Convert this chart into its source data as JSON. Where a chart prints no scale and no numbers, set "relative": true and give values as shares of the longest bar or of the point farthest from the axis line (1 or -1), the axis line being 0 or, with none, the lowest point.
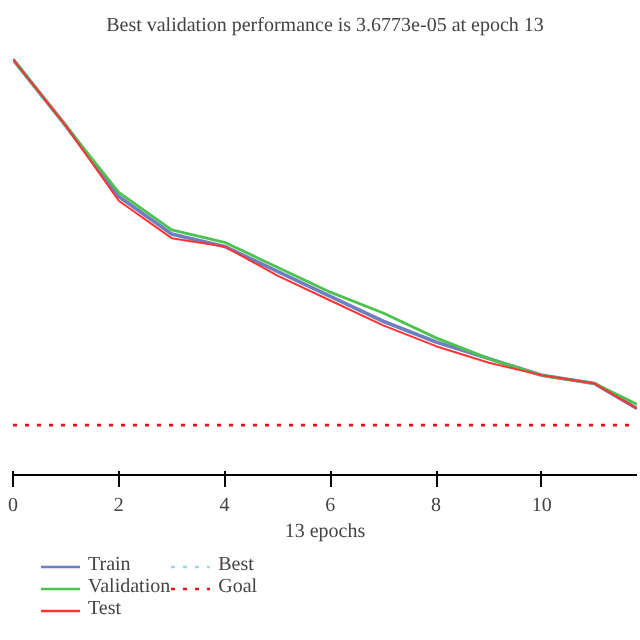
{
  "chart_data": {
    "type": "line",
    "title": "Best validation performance is 3.6773e-05 at epoch 13",
    "xlabel": "13 epochs",
    "relative": true,
    "x": [
      0,
      1,
      2,
      3,
      4,
      5,
      6,
      7,
      8,
      9,
      10,
      11,
      11.8
    ],
    "xlim": [
      0,
      11.8
    ],
    "xticks": [
      0,
      2,
      4,
      6,
      8,
      10
    ],
    "series": [
      {
        "name": "Train",
        "color": "#6d7fc0",
        "values": [
          1,
          0.84,
          0.67,
          0.58,
          0.55,
          0.49,
          0.43,
          0.37,
          0.32,
          0.28,
          0.24,
          0.22,
          0.16
        ]
      },
      {
        "name": "Validation",
        "color": "#4dc24d",
        "values": [
          1,
          0.84,
          0.68,
          0.59,
          0.56,
          0.5,
          0.44,
          0.39,
          0.33,
          0.28,
          0.24,
          0.22,
          0.17
        ]
      },
      {
        "name": "Test",
        "color": "#ff3333",
        "values": [
          1,
          0.84,
          0.66,
          0.57,
          0.55,
          0.48,
          0.42,
          0.36,
          0.31,
          0.27,
          0.24,
          0.22,
          0.16
        ]
      },
      {
        "name": "Best",
        "color": "#a0d8d8",
        "line_style": "dotted",
        "values": [
          null,
          null,
          null,
          null,
          null,
          null,
          null,
          null,
          null,
          null,
          null,
          null,
          null
        ]
      },
      {
        "name": "Goal",
        "color": "#e8101f",
        "line_style": "dotted",
        "values": [
          0.12,
          0.12,
          0.12,
          0.12,
          0.12,
          0.12,
          0.12,
          0.12,
          0.12,
          0.12,
          0.12,
          0.12,
          0.12
        ]
      }
    ],
    "legend": "bottom",
    "line_style": "solid"
  }
}
